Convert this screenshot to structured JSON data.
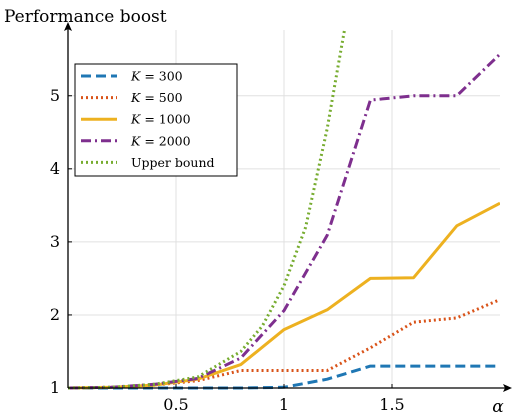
{
  "chart_data": {
    "type": "line",
    "title": "",
    "ylabel": "Performance boost",
    "xlabel": "α",
    "xlim": [
      0,
      2
    ],
    "ylim": [
      1,
      5.9
    ],
    "x_ticks": [
      0.5,
      1,
      1.5
    ],
    "x_tick_labels": [
      "0.5",
      "1",
      "1.5"
    ],
    "y_ticks": [
      1,
      2,
      3,
      4,
      5
    ],
    "y_tick_labels": [
      "1",
      "2",
      "3",
      "4",
      "5"
    ],
    "grid": true,
    "legend_position": "top-left",
    "series": [
      {
        "name": "K = 300",
        "legend_var": "K",
        "legend_value": "= 300",
        "color": "#1f77b4",
        "dash": "dashed",
        "x": [
          0,
          0.2,
          0.4,
          0.6,
          0.8,
          1.0,
          1.2,
          1.4,
          1.6,
          1.8,
          2.0
        ],
        "y": [
          1.0,
          1.0,
          1.0,
          1.0,
          1.0,
          1.01,
          1.12,
          1.3,
          1.3,
          1.3,
          1.3
        ]
      },
      {
        "name": "K = 500",
        "legend_var": "K",
        "legend_value": "= 500",
        "color": "#d95319",
        "dash": "dotted",
        "x": [
          0,
          0.2,
          0.4,
          0.6,
          0.8,
          1.0,
          1.2,
          1.4,
          1.6,
          1.8,
          2.0
        ],
        "y": [
          1.0,
          1.01,
          1.04,
          1.1,
          1.24,
          1.24,
          1.24,
          1.55,
          1.9,
          1.96,
          2.21
        ]
      },
      {
        "name": "K = 1000",
        "legend_var": "K",
        "legend_value": "= 1000",
        "color": "#edb120",
        "dash": "solid",
        "x": [
          0,
          0.2,
          0.4,
          0.6,
          0.8,
          1.0,
          1.2,
          1.4,
          1.6,
          1.8,
          2.0
        ],
        "y": [
          1.0,
          1.01,
          1.04,
          1.12,
          1.32,
          1.8,
          2.07,
          2.5,
          2.51,
          3.22,
          3.53
        ]
      },
      {
        "name": "K = 2000",
        "legend_var": "K",
        "legend_value": "= 2000",
        "color": "#7e2f8e",
        "dash": "dashdot",
        "x": [
          0,
          0.2,
          0.4,
          0.6,
          0.8,
          1.0,
          1.2,
          1.4,
          1.6,
          1.8,
          2.0
        ],
        "y": [
          1.0,
          1.01,
          1.05,
          1.13,
          1.41,
          2.06,
          3.09,
          4.94,
          5.0,
          5.0,
          5.57
        ]
      },
      {
        "name": "Upper bound",
        "legend_var": "",
        "legend_value": "Upper bound",
        "color": "#77ac30",
        "dash": "dotted",
        "x": [
          0,
          0.2,
          0.4,
          0.6,
          0.8,
          0.9,
          1.0,
          1.1,
          1.2,
          1.25,
          1.28
        ],
        "y": [
          1.0,
          1.01,
          1.05,
          1.15,
          1.5,
          1.85,
          2.4,
          3.2,
          4.55,
          5.4,
          5.9
        ]
      }
    ]
  }
}
